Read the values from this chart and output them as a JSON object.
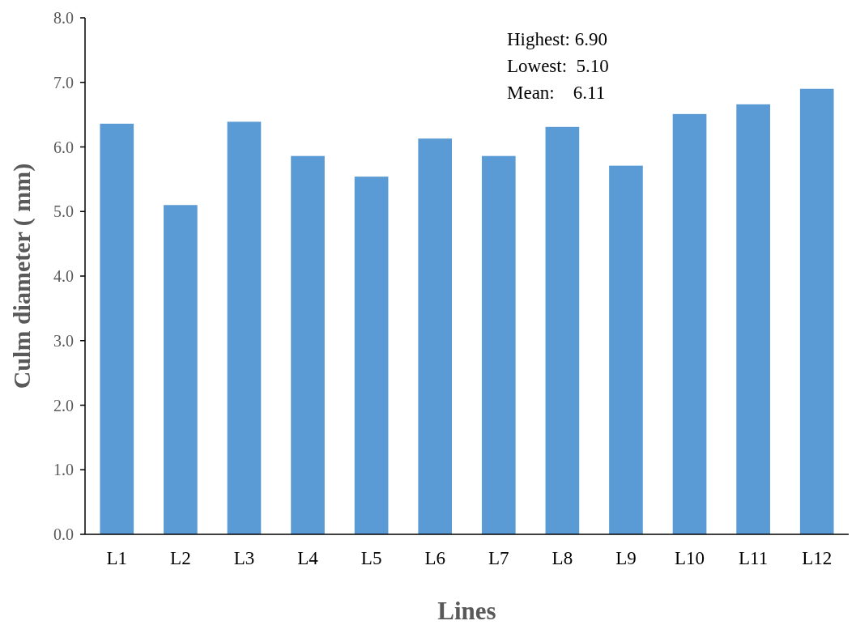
{
  "chart_data": {
    "type": "bar",
    "xlabel": "Lines",
    "ylabel": "Culm diameter ( mm)",
    "categories": [
      "L1",
      "L2",
      "L3",
      "L4",
      "L5",
      "L6",
      "L7",
      "L8",
      "L9",
      "L10",
      "L11",
      "L12"
    ],
    "values": [
      6.36,
      5.1,
      6.39,
      5.86,
      5.54,
      6.13,
      5.86,
      6.31,
      5.71,
      6.51,
      6.66,
      6.9
    ],
    "color": "#5b9bd5",
    "ylim": [
      0,
      8
    ],
    "yticks": [
      {
        "value": 0,
        "label": "0.0"
      },
      {
        "value": 1,
        "label": "1.0"
      },
      {
        "value": 2,
        "label": "2.0"
      },
      {
        "value": 3,
        "label": "3.0"
      },
      {
        "value": 4,
        "label": "4.0"
      },
      {
        "value": 5,
        "label": "5.0"
      },
      {
        "value": 6,
        "label": "6.0"
      },
      {
        "value": 7,
        "label": "7.0"
      },
      {
        "value": 8,
        "label": "8.0"
      }
    ],
    "annotations": [
      "Highest: 6.90",
      "Lowest:  5.10",
      "Mean:    6.11"
    ],
    "grid": false
  }
}
